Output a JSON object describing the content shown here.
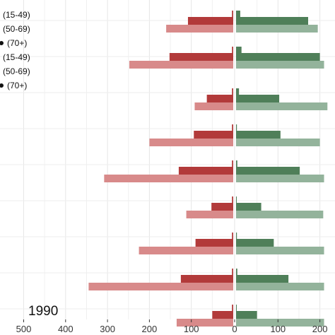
{
  "chart_data": {
    "type": "bar",
    "orientation": "horizontal-diverging",
    "xlim": [
      -500,
      200
    ],
    "x_ticks": [
      -500,
      -400,
      -300,
      -200,
      -100,
      0,
      100,
      200
    ],
    "x_tick_labels": [
      "500",
      "400",
      "300",
      "200",
      "100",
      "0",
      "100",
      "200"
    ],
    "grid": true,
    "annotation": "1990",
    "legend": [
      "(15-49)",
      "(50-69)",
      "(70+)",
      "(15-49)",
      "(50-69)",
      "(70+)"
    ],
    "colors": {
      "left_dark": "#b23a3a",
      "left_light": "#d88a8a",
      "right_dark": "#4f7f59",
      "right_light": "#93b39b",
      "grid": "#e6e6e6",
      "background": "#ffffff"
    },
    "groups": [
      {
        "left": [
          -3,
          -108,
          -160
        ],
        "right": [
          10,
          172,
          195
        ]
      },
      {
        "left": [
          -3,
          -152,
          -248
        ],
        "right": [
          13,
          200,
          210
        ]
      },
      {
        "left": [
          -3,
          -63,
          -92
        ],
        "right": [
          7,
          103,
          218
        ]
      },
      {
        "left": [
          -3,
          -94,
          -200
        ],
        "right": [
          2,
          106,
          200
        ]
      },
      {
        "left": [
          -3,
          -130,
          -308
        ],
        "right": [
          3,
          152,
          210
        ]
      },
      {
        "left": [
          -3,
          -52,
          -112
        ],
        "right": [
          1,
          60,
          208
        ]
      },
      {
        "left": [
          -3,
          -90,
          -225
        ],
        "right": [
          2,
          90,
          210
        ]
      },
      {
        "left": [
          -3,
          -125,
          -345
        ],
        "right": [
          3,
          125,
          210
        ]
      },
      {
        "left": [
          -3,
          -50,
          -135
        ],
        "right": [
          1,
          50,
          210
        ]
      }
    ]
  }
}
